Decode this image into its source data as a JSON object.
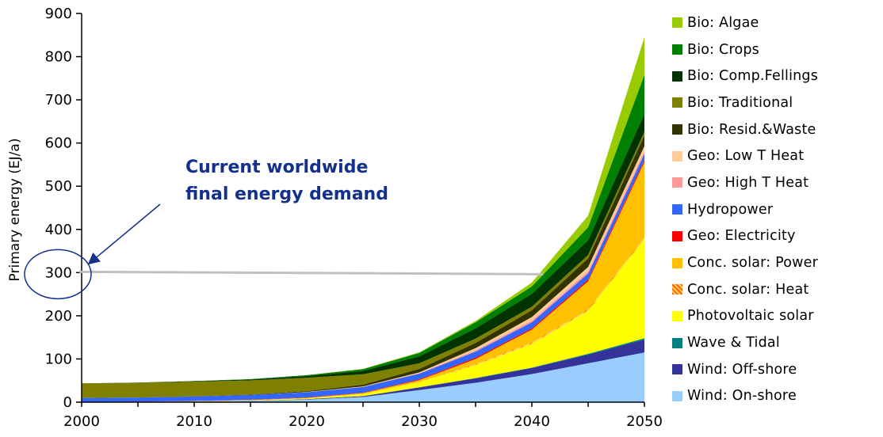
{
  "chart_data": {
    "type": "area",
    "stacked": true,
    "title": "",
    "xlabel": "",
    "ylabel": "Primary energy (EJ/a)",
    "x": [
      2000,
      2005,
      2010,
      2015,
      2020,
      2025,
      2030,
      2035,
      2040,
      2045,
      2050
    ],
    "xticks": [
      2000,
      2010,
      2020,
      2030,
      2040,
      2050
    ],
    "yticks": [
      0,
      100,
      200,
      300,
      400,
      500,
      600,
      700,
      800,
      900
    ],
    "xlim": [
      2000,
      2050
    ],
    "ylim": [
      0,
      900
    ],
    "grid": false,
    "legend_position": "right",
    "series": [
      {
        "name": "Wind: On-shore",
        "color": "#99ccff",
        "values": [
          0.5,
          1,
          2,
          3,
          6,
          12,
          28,
          45,
          65,
          90,
          115
        ]
      },
      {
        "name": "Wind: Off-shore",
        "color": "#333399",
        "values": [
          0,
          0,
          0,
          0.5,
          1,
          2,
          6,
          10,
          14,
          20,
          30
        ]
      },
      {
        "name": "Wave & Tidal",
        "color": "#008080",
        "values": [
          0,
          0,
          0,
          0,
          0,
          0,
          0.5,
          1,
          1,
          2,
          3
        ]
      },
      {
        "name": "Photovoltaic solar",
        "color": "#ffff00",
        "values": [
          0,
          0,
          0.5,
          1,
          2,
          5,
          12,
          30,
          55,
          100,
          230
        ]
      },
      {
        "name": "Conc. solar: Heat",
        "color": "#ffb333",
        "pattern": "hatch",
        "values": [
          0,
          0,
          0,
          0,
          0,
          0,
          0.5,
          2,
          3,
          3,
          3
        ]
      },
      {
        "name": "Conc. solar: Power",
        "color": "#ffc000",
        "values": [
          0,
          0,
          0,
          0.5,
          1,
          2,
          4,
          12,
          30,
          65,
          175
        ]
      },
      {
        "name": "Geo: Electricity",
        "color": "#ff0000",
        "values": [
          0.2,
          0.3,
          0.5,
          0.5,
          1,
          1,
          2,
          3,
          3,
          4,
          5
        ]
      },
      {
        "name": "Hydropower",
        "color": "#3366ff",
        "values": [
          9,
          9.5,
          10,
          11,
          12,
          13,
          13,
          14,
          14,
          14,
          14
        ]
      },
      {
        "name": "Geo: High T Heat",
        "color": "#ff9999",
        "values": [
          0,
          0,
          0,
          0,
          0,
          0.5,
          1,
          3,
          4,
          5,
          6
        ]
      },
      {
        "name": "Geo: Low T Heat",
        "color": "#ffcc99",
        "values": [
          0,
          0,
          0,
          0,
          0.5,
          1,
          2,
          5,
          8,
          10,
          12
        ]
      },
      {
        "name": "Bio: Resid.&Waste",
        "color": "#333300",
        "values": [
          0,
          0,
          0.5,
          1,
          2,
          4,
          8,
          12,
          16,
          20,
          25
        ]
      },
      {
        "name": "Bio: Traditional",
        "color": "#808000",
        "values": [
          34,
          34,
          34,
          33,
          31,
          24,
          13,
          10,
          8,
          8,
          8
        ]
      },
      {
        "name": "Bio: Comp.Fellings",
        "color": "#003300",
        "values": [
          0,
          0.5,
          1,
          2,
          4,
          8,
          16,
          24,
          30,
          34,
          42
        ]
      },
      {
        "name": "Bio: Crops",
        "color": "#008000",
        "values": [
          0,
          0,
          0.5,
          1,
          2,
          4,
          8,
          14,
          17,
          30,
          90
        ]
      },
      {
        "name": "Bio: Algae",
        "color": "#99cc00",
        "values": [
          0,
          0,
          0,
          0,
          0,
          0.5,
          1.5,
          3,
          9,
          27,
          87
        ]
      }
    ],
    "legend_order": [
      "Bio: Algae",
      "Bio: Crops",
      "Bio: Comp.Fellings",
      "Bio: Traditional",
      "Bio: Resid.&Waste",
      "Geo: Low T Heat",
      "Geo: High T Heat",
      "Hydropower",
      "Geo: Electricity",
      "Conc. solar: Power",
      "Conc. solar: Heat",
      "Photovoltaic solar",
      "Wave & Tidal",
      "Wind: Off-shore",
      "Wind: On-shore"
    ],
    "annotations": {
      "reference_text_line1": "Current worldwide",
      "reference_text_line2": "final energy demand",
      "reference_value": 300,
      "reference_x_end": 2041,
      "reference_color": "#c0c0c0",
      "text_color": "#13308c"
    }
  }
}
